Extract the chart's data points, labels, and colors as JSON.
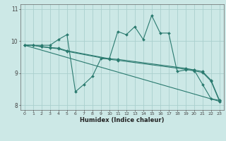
{
  "title": "",
  "xlabel": "Humidex (Indice chaleur)",
  "ylabel": "",
  "bg_color": "#cce8e6",
  "grid_color": "#aacfcd",
  "line_color": "#2a7a6f",
  "xlim": [
    -0.5,
    23.5
  ],
  "ylim": [
    7.85,
    11.15
  ],
  "yticks": [
    8,
    9,
    10,
    11
  ],
  "xticks": [
    0,
    1,
    2,
    3,
    4,
    5,
    6,
    7,
    8,
    9,
    10,
    11,
    12,
    13,
    14,
    15,
    16,
    17,
    18,
    19,
    20,
    21,
    22,
    23
  ],
  "lines": [
    {
      "x": [
        0,
        1,
        2,
        3,
        4,
        5,
        6,
        7,
        8,
        9,
        10,
        11,
        12,
        13,
        14,
        15,
        16,
        17,
        18,
        19,
        20,
        21,
        22,
        23
      ],
      "y": [
        9.87,
        9.87,
        9.87,
        9.87,
        10.05,
        10.2,
        8.42,
        8.65,
        8.9,
        9.45,
        9.45,
        10.3,
        10.2,
        10.45,
        10.05,
        10.8,
        10.25,
        10.25,
        9.05,
        9.1,
        9.1,
        8.65,
        8.2,
        8.15
      ]
    },
    {
      "x": [
        0,
        1,
        2,
        3,
        4,
        5,
        10,
        11,
        19,
        20,
        21,
        22,
        23
      ],
      "y": [
        9.87,
        9.87,
        9.83,
        9.8,
        9.78,
        9.7,
        9.45,
        9.43,
        9.15,
        9.1,
        9.05,
        8.78,
        8.15
      ]
    },
    {
      "x": [
        0,
        1,
        2,
        3,
        4,
        5,
        10,
        11,
        19,
        20,
        21,
        22,
        23
      ],
      "y": [
        9.87,
        9.87,
        9.82,
        9.79,
        9.76,
        9.68,
        9.43,
        9.4,
        9.12,
        9.07,
        9.02,
        8.75,
        8.12
      ]
    },
    {
      "x": [
        0,
        23
      ],
      "y": [
        9.87,
        8.12
      ]
    }
  ]
}
